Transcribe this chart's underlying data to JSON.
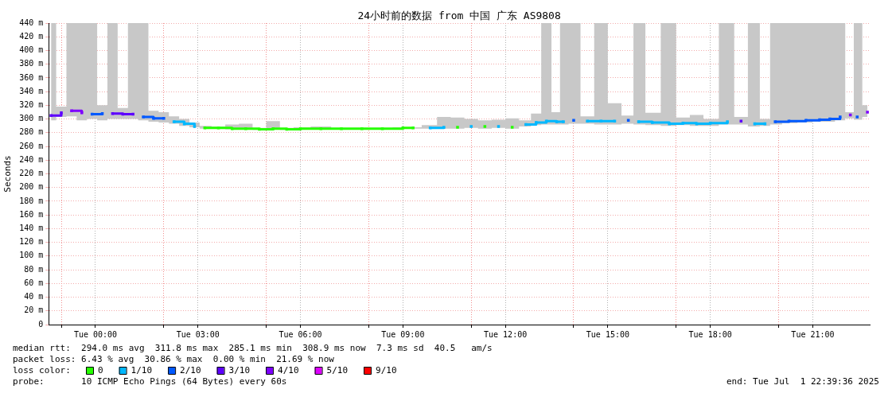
{
  "chart_data": {
    "type": "step",
    "title": "24小时前的数据 from 中国 广东 AS9808",
    "ylabel": "Seconds",
    "legend_title": "loss color:",
    "legend": "bottom",
    "grid": true,
    "marker": "square",
    "line_style": "solid",
    "xlim": [
      "2025-06-30T22:38",
      "2025-07-01T22:40"
    ],
    "xticks": [
      {
        "value": "2025-06-30T23:00",
        "label": null
      },
      {
        "value": "2025-07-01T00:00",
        "label": "Tue 00:00"
      },
      {
        "value": "2025-07-01T02:00",
        "label": null
      },
      {
        "value": "2025-07-01T03:00",
        "label": "Tue 03:00"
      },
      {
        "value": "2025-07-01T05:00",
        "label": null
      },
      {
        "value": "2025-07-01T06:00",
        "label": "Tue 06:00"
      },
      {
        "value": "2025-07-01T08:00",
        "label": null
      },
      {
        "value": "2025-07-01T09:00",
        "label": "Tue 09:00"
      },
      {
        "value": "2025-07-01T11:00",
        "label": null
      },
      {
        "value": "2025-07-01T12:00",
        "label": "Tue 12:00"
      },
      {
        "value": "2025-07-01T14:00",
        "label": null
      },
      {
        "value": "2025-07-01T15:00",
        "label": "Tue 15:00"
      },
      {
        "value": "2025-07-01T17:00",
        "label": null
      },
      {
        "value": "2025-07-01T18:00",
        "label": "Tue 18:00"
      },
      {
        "value": "2025-07-01T20:00",
        "label": null
      },
      {
        "value": "2025-07-01T21:00",
        "label": "Tue 21:00"
      }
    ],
    "ylim": [
      0,
      440
    ],
    "yticks": [
      0,
      {
        "value": 20,
        "label": "20 m"
      },
      {
        "value": 40,
        "label": "40 m"
      },
      {
        "value": 60,
        "label": "60 m"
      },
      {
        "value": 80,
        "label": "80 m"
      },
      {
        "value": 100,
        "label": "100 m"
      },
      {
        "value": 120,
        "label": "120 m"
      },
      {
        "value": 140,
        "label": "140 m"
      },
      {
        "value": 160,
        "label": "160 m"
      },
      {
        "value": 180,
        "label": "180 m"
      },
      {
        "value": 200,
        "label": "200 m"
      },
      {
        "value": 220,
        "label": "220 m"
      },
      {
        "value": 240,
        "label": "240 m"
      },
      {
        "value": 260,
        "label": "260 m"
      },
      {
        "value": 280,
        "label": "280 m"
      },
      {
        "value": 300,
        "label": "300 m"
      },
      {
        "value": 320,
        "label": "320 m"
      },
      {
        "value": 340,
        "label": "340 m"
      },
      {
        "value": 360,
        "label": "360 m"
      },
      {
        "value": 380,
        "label": "380 m"
      },
      {
        "value": 400,
        "label": "400 m"
      },
      {
        "value": 420,
        "label": "420 m"
      },
      {
        "value": 440,
        "label": "440 m"
      }
    ],
    "x": [
      "2025-06-30T22:42",
      "2025-06-30T23:00",
      "2025-06-30T23:18",
      "2025-06-30T23:36",
      "2025-06-30T23:54",
      "2025-07-01T00:12",
      "2025-07-01T00:30",
      "2025-07-01T00:48",
      "2025-07-01T01:06",
      "2025-07-01T01:24",
      "2025-07-01T01:42",
      "2025-07-01T02:00",
      "2025-07-01T02:18",
      "2025-07-01T02:36",
      "2025-07-01T02:54",
      "2025-07-01T03:12",
      "2025-07-01T03:36",
      "2025-07-01T04:00",
      "2025-07-01T04:24",
      "2025-07-01T04:48",
      "2025-07-01T05:12",
      "2025-07-01T05:36",
      "2025-07-01T06:00",
      "2025-07-01T06:36",
      "2025-07-01T07:12",
      "2025-07-01T07:48",
      "2025-07-01T08:24",
      "2025-07-01T09:00",
      "2025-07-01T09:18",
      "2025-07-01T09:48",
      "2025-07-01T10:12",
      "2025-07-01T10:36",
      "2025-07-01T11:00",
      "2025-07-01T11:24",
      "2025-07-01T11:48",
      "2025-07-01T12:12",
      "2025-07-01T12:36",
      "2025-07-01T12:54",
      "2025-07-01T13:12",
      "2025-07-01T13:30",
      "2025-07-01T13:42",
      "2025-07-01T14:00",
      "2025-07-01T14:24",
      "2025-07-01T14:48",
      "2025-07-01T15:12",
      "2025-07-01T15:36",
      "2025-07-01T15:54",
      "2025-07-01T16:18",
      "2025-07-01T16:48",
      "2025-07-01T17:12",
      "2025-07-01T17:36",
      "2025-07-01T18:00",
      "2025-07-01T18:30",
      "2025-07-01T18:54",
      "2025-07-01T19:18",
      "2025-07-01T19:36",
      "2025-07-01T19:54",
      "2025-07-01T20:18",
      "2025-07-01T20:48",
      "2025-07-01T21:12",
      "2025-07-01T21:30",
      "2025-07-01T21:48",
      "2025-07-01T22:06",
      "2025-07-01T22:18",
      "2025-07-01T22:36"
    ],
    "series": [
      {
        "type": "area",
        "color": "#c8c8c8",
        "values": [
          null,
          null,
          null,
          null,
          null,
          null,
          null,
          null,
          null,
          null,
          null,
          null,
          null,
          null,
          null,
          null,
          null,
          null,
          null,
          null,
          null,
          null,
          null,
          null,
          null,
          null,
          null,
          null,
          null,
          null,
          null,
          null,
          null,
          null,
          null,
          null,
          null,
          null,
          null,
          null,
          null,
          null,
          null,
          null,
          null,
          null,
          null,
          null,
          null,
          null,
          null,
          null,
          null,
          null,
          null,
          null,
          null,
          null,
          null,
          null,
          null,
          null,
          null,
          null,
          null
        ],
        "lower": [
          298,
          303,
          304,
          298,
          300,
          298,
          300,
          300,
          300,
          298,
          296,
          295,
          293,
          290,
          288,
          286,
          286,
          285,
          285,
          284,
          285,
          284,
          285,
          285,
          285,
          285,
          285,
          286,
          286,
          286,
          286,
          286,
          287,
          286,
          287,
          286,
          289,
          291,
          292,
          292,
          292,
          293,
          293,
          292,
          292,
          293,
          292,
          291,
          290,
          291,
          290,
          290,
          292,
          292,
          289,
          290,
          292,
          294,
          295,
          296,
          296,
          298,
          301,
          299,
          303
        ],
        "upper": [
          440,
          318,
          440,
          440,
          440,
          320,
          440,
          316,
          440,
          440,
          312,
          310,
          304,
          300,
          295,
          290,
          289,
          292,
          293,
          287,
          297,
          287,
          288,
          289,
          287,
          287,
          287,
          288,
          288,
          291,
          303,
          302,
          300,
          298,
          299,
          301,
          298,
          308,
          440,
          310,
          440,
          440,
          304,
          440,
          323,
          305,
          440,
          309,
          440,
          302,
          306,
          300,
          440,
          303,
          440,
          300,
          440,
          440,
          440,
          440,
          440,
          440,
          310,
          440,
          320
        ]
      },
      {
        "name": "0",
        "color": "#26ff00",
        "values": [
          null,
          null,
          null,
          null,
          null,
          null,
          null,
          null,
          null,
          null,
          null,
          null,
          null,
          null,
          null,
          287,
          287,
          286,
          286,
          285,
          286,
          285,
          286,
          286,
          286,
          286,
          286,
          287,
          287,
          null,
          null,
          288,
          null,
          289,
          null,
          288,
          null,
          null,
          null,
          null,
          null,
          null,
          null,
          null,
          null,
          null,
          null,
          null,
          null,
          null,
          null,
          null,
          null,
          null,
          null,
          null,
          null,
          null,
          null,
          null,
          null,
          null,
          null,
          null,
          null
        ]
      },
      {
        "name": "1/10",
        "color": "#00b8ff",
        "values": [
          null,
          null,
          null,
          null,
          null,
          null,
          null,
          null,
          null,
          null,
          null,
          null,
          296,
          293,
          289,
          null,
          null,
          null,
          null,
          null,
          null,
          null,
          null,
          null,
          null,
          null,
          null,
          null,
          null,
          287,
          288,
          null,
          289,
          null,
          289,
          null,
          292,
          295,
          297,
          296,
          296,
          null,
          297,
          297,
          297,
          null,
          296,
          295,
          293,
          294,
          293,
          294,
          296,
          null,
          293,
          293,
          null,
          null,
          null,
          null,
          null,
          null,
          null,
          null,
          null
        ]
      },
      {
        "name": "2/10",
        "color": "#0059ff",
        "values": [
          null,
          null,
          null,
          null,
          307,
          308,
          null,
          null,
          null,
          303,
          301,
          301,
          null,
          null,
          null,
          null,
          null,
          null,
          null,
          null,
          null,
          null,
          null,
          null,
          null,
          null,
          null,
          null,
          null,
          null,
          null,
          null,
          null,
          null,
          null,
          null,
          null,
          null,
          null,
          null,
          null,
          298,
          null,
          null,
          null,
          298,
          null,
          null,
          null,
          null,
          null,
          null,
          null,
          null,
          null,
          null,
          296,
          297,
          298,
          299,
          300,
          303,
          null,
          303,
          null
        ]
      },
      {
        "name": "3/10",
        "color": "#5e00ff",
        "values": [
          305,
          309,
          null,
          null,
          null,
          null,
          308,
          307,
          307,
          null,
          null,
          null,
          null,
          null,
          null,
          null,
          null,
          null,
          null,
          null,
          null,
          null,
          null,
          null,
          null,
          null,
          null,
          null,
          null,
          null,
          null,
          null,
          null,
          null,
          null,
          null,
          null,
          null,
          null,
          null,
          null,
          null,
          null,
          null,
          null,
          null,
          null,
          null,
          null,
          null,
          null,
          null,
          null,
          297,
          null,
          null,
          null,
          null,
          null,
          null,
          null,
          null,
          null,
          null,
          null
        ]
      },
      {
        "name": "4/10",
        "color": "#7e00ff",
        "values": [
          null,
          null,
          312,
          309,
          null,
          null,
          null,
          null,
          null,
          null,
          null,
          null,
          null,
          null,
          null,
          null,
          null,
          null,
          null,
          null,
          null,
          null,
          null,
          null,
          null,
          null,
          null,
          null,
          null,
          null,
          null,
          null,
          null,
          null,
          null,
          null,
          null,
          null,
          null,
          null,
          null,
          null,
          null,
          null,
          null,
          null,
          null,
          null,
          null,
          null,
          null,
          null,
          null,
          null,
          null,
          null,
          null,
          null,
          null,
          null,
          null,
          null,
          306,
          null,
          310
        ]
      },
      {
        "name": "5/10",
        "color": "#dd00ff",
        "values": [
          null,
          null,
          null,
          null,
          null,
          null,
          null,
          null,
          null,
          null,
          null,
          null,
          null,
          null,
          null,
          null,
          null,
          null,
          null,
          null,
          null,
          null,
          null,
          null,
          null,
          null,
          null,
          null,
          null,
          null,
          null,
          null,
          null,
          null,
          null,
          null,
          null,
          null,
          null,
          null,
          null,
          null,
          null,
          null,
          null,
          null,
          null,
          null,
          null,
          null,
          null,
          null,
          null,
          null,
          null,
          null,
          null,
          null,
          null,
          null,
          null,
          null,
          null,
          null,
          null
        ]
      },
      {
        "name": "9/10",
        "color": "#ff0000",
        "values": [
          null,
          null,
          null,
          null,
          null,
          null,
          null,
          null,
          null,
          null,
          null,
          null,
          null,
          null,
          null,
          null,
          null,
          null,
          null,
          null,
          null,
          null,
          null,
          null,
          null,
          null,
          null,
          null,
          null,
          null,
          null,
          null,
          null,
          null,
          null,
          null,
          null,
          null,
          null,
          null,
          null,
          null,
          null,
          null,
          null,
          null,
          null,
          null,
          null,
          null,
          null,
          null,
          null,
          null,
          null,
          null,
          null,
          null,
          null,
          null,
          null,
          null,
          null,
          null,
          null
        ]
      }
    ],
    "annotations": [
      "median rtt:  294.0 ms avg  311.8 ms max  285.1 ms min  308.9 ms now  7.3 ms sd  40.5   am/s",
      "packet loss: 6.43 % avg  30.86 % max  0.00 % min  21.69 % now",
      "probe:       10 ICMP Echo Pings (64 Bytes) every 60s",
      "end: Tue Jul  1 22:39:36 2025"
    ]
  }
}
